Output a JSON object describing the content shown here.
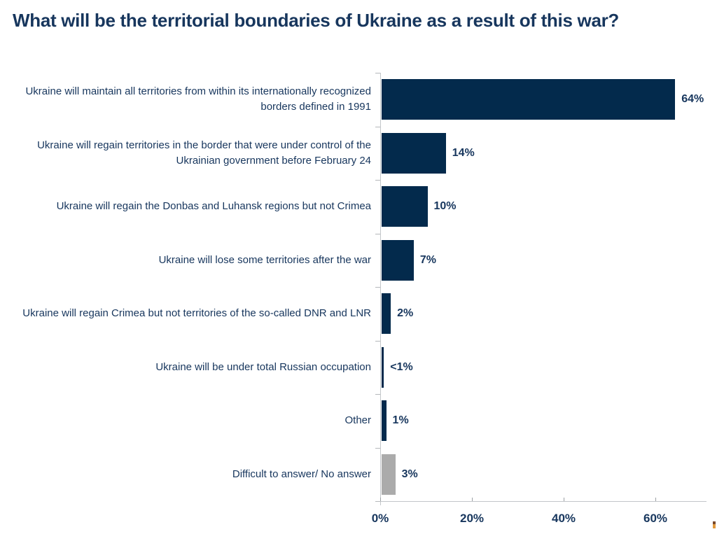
{
  "title": "What will be the territorial boundaries of Ukraine as a result of this war?",
  "chart_data": {
    "type": "bar",
    "orientation": "horizontal",
    "title": "What will be the territorial boundaries of Ukraine as a result of this war?",
    "xlabel": "",
    "ylabel": "",
    "xlim": [
      0,
      71
    ],
    "grid": false,
    "legend": false,
    "categories": [
      "Ukraine will maintain all territories from within its internationally recognized borders defined in 1991",
      "Ukraine will regain territories in the border that were under control of the Ukrainian government before February 24",
      "Ukraine will regain the Donbas and Luhansk regions but not Crimea",
      "Ukraine will lose some territories after the war",
      "Ukraine will regain Crimea but not territories of the so-called DNR and LNR",
      "Ukraine will be under total Russian occupation",
      "Other",
      "Difficult to answer/ No answer"
    ],
    "values": [
      64,
      14,
      10,
      7,
      2,
      0.5,
      1,
      3
    ],
    "value_labels": [
      "64%",
      "14%",
      "10%",
      "7%",
      "2%",
      "<1%",
      "1%",
      "3%"
    ],
    "bar_colors": [
      "#032a4c",
      "#032a4c",
      "#032a4c",
      "#032a4c",
      "#032a4c",
      "#032a4c",
      "#032a4c",
      "#ababab"
    ],
    "x_ticks": [
      "0%",
      "20%",
      "40%",
      "60%"
    ],
    "x_tick_values": [
      0,
      20,
      40,
      60
    ],
    "colors": {
      "bar_primary": "#032a4c",
      "bar_muted": "#ababab",
      "text": "#17365d",
      "axis": "#c3c6c9"
    }
  },
  "logo_fragment": {
    "top_color": "#7a4a2a",
    "bottom_color": "#e29a3d"
  }
}
